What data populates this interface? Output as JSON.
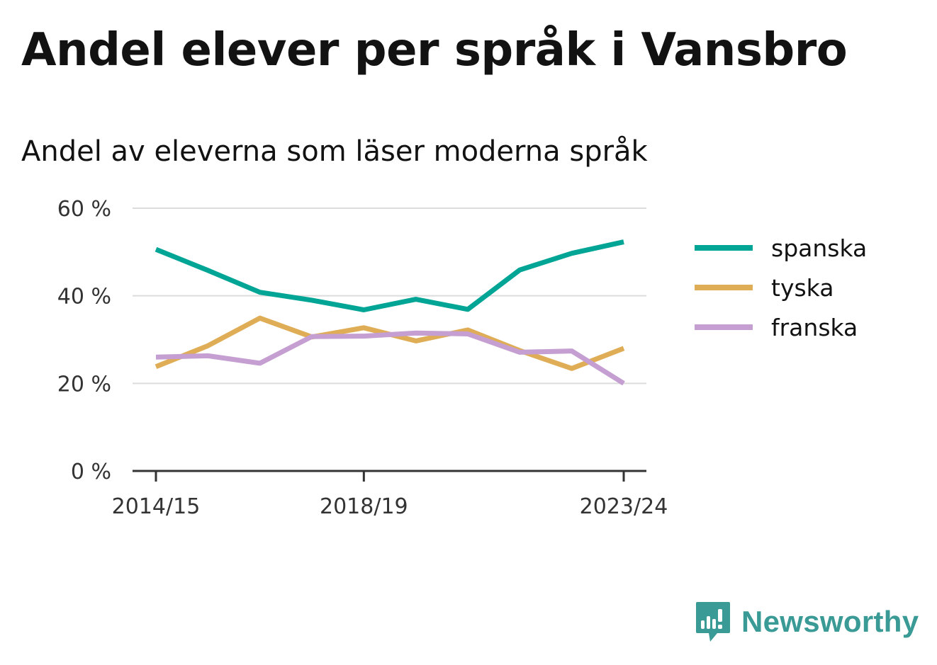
{
  "title": "Andel elever per språk i Vansbro",
  "subtitle": "Andel av eleverna som läser moderna språk",
  "brand": {
    "name": "Newsworthy",
    "icon": "bar-chart-speech-bubble-icon",
    "color": "#3a9a95"
  },
  "chart_data": {
    "type": "line",
    "title": "Andel elever per språk i Vansbro",
    "subtitle": "Andel av eleverna som läser moderna språk",
    "xlabel": "",
    "ylabel": "",
    "x": [
      "2014/15",
      "2015/16",
      "2016/17",
      "2017/18",
      "2018/19",
      "2019/20",
      "2020/21",
      "2021/22",
      "2022/23",
      "2023/24"
    ],
    "x_tick_labels": [
      "2014/15",
      "2018/19",
      "2023/24"
    ],
    "y_ticks": [
      0,
      20,
      40,
      60
    ],
    "y_tick_labels": [
      "0 %",
      "20 %",
      "40 %",
      "60 %"
    ],
    "ylim": [
      0,
      60
    ],
    "grid": true,
    "legend_position": "right",
    "series": [
      {
        "name": "spanska",
        "color": "#00a595",
        "values": [
          50.6,
          45.8,
          40.8,
          39.0,
          36.8,
          39.2,
          36.9,
          45.9,
          49.7,
          52.3
        ]
      },
      {
        "name": "tyska",
        "color": "#dfad56",
        "values": [
          23.8,
          28.6,
          34.9,
          30.6,
          32.7,
          29.7,
          32.2,
          27.5,
          23.4,
          28.0
        ]
      },
      {
        "name": "franska",
        "color": "#c59fd1",
        "values": [
          26.0,
          26.3,
          24.6,
          30.7,
          30.8,
          31.5,
          31.3,
          27.1,
          27.4,
          20.0
        ]
      }
    ]
  }
}
